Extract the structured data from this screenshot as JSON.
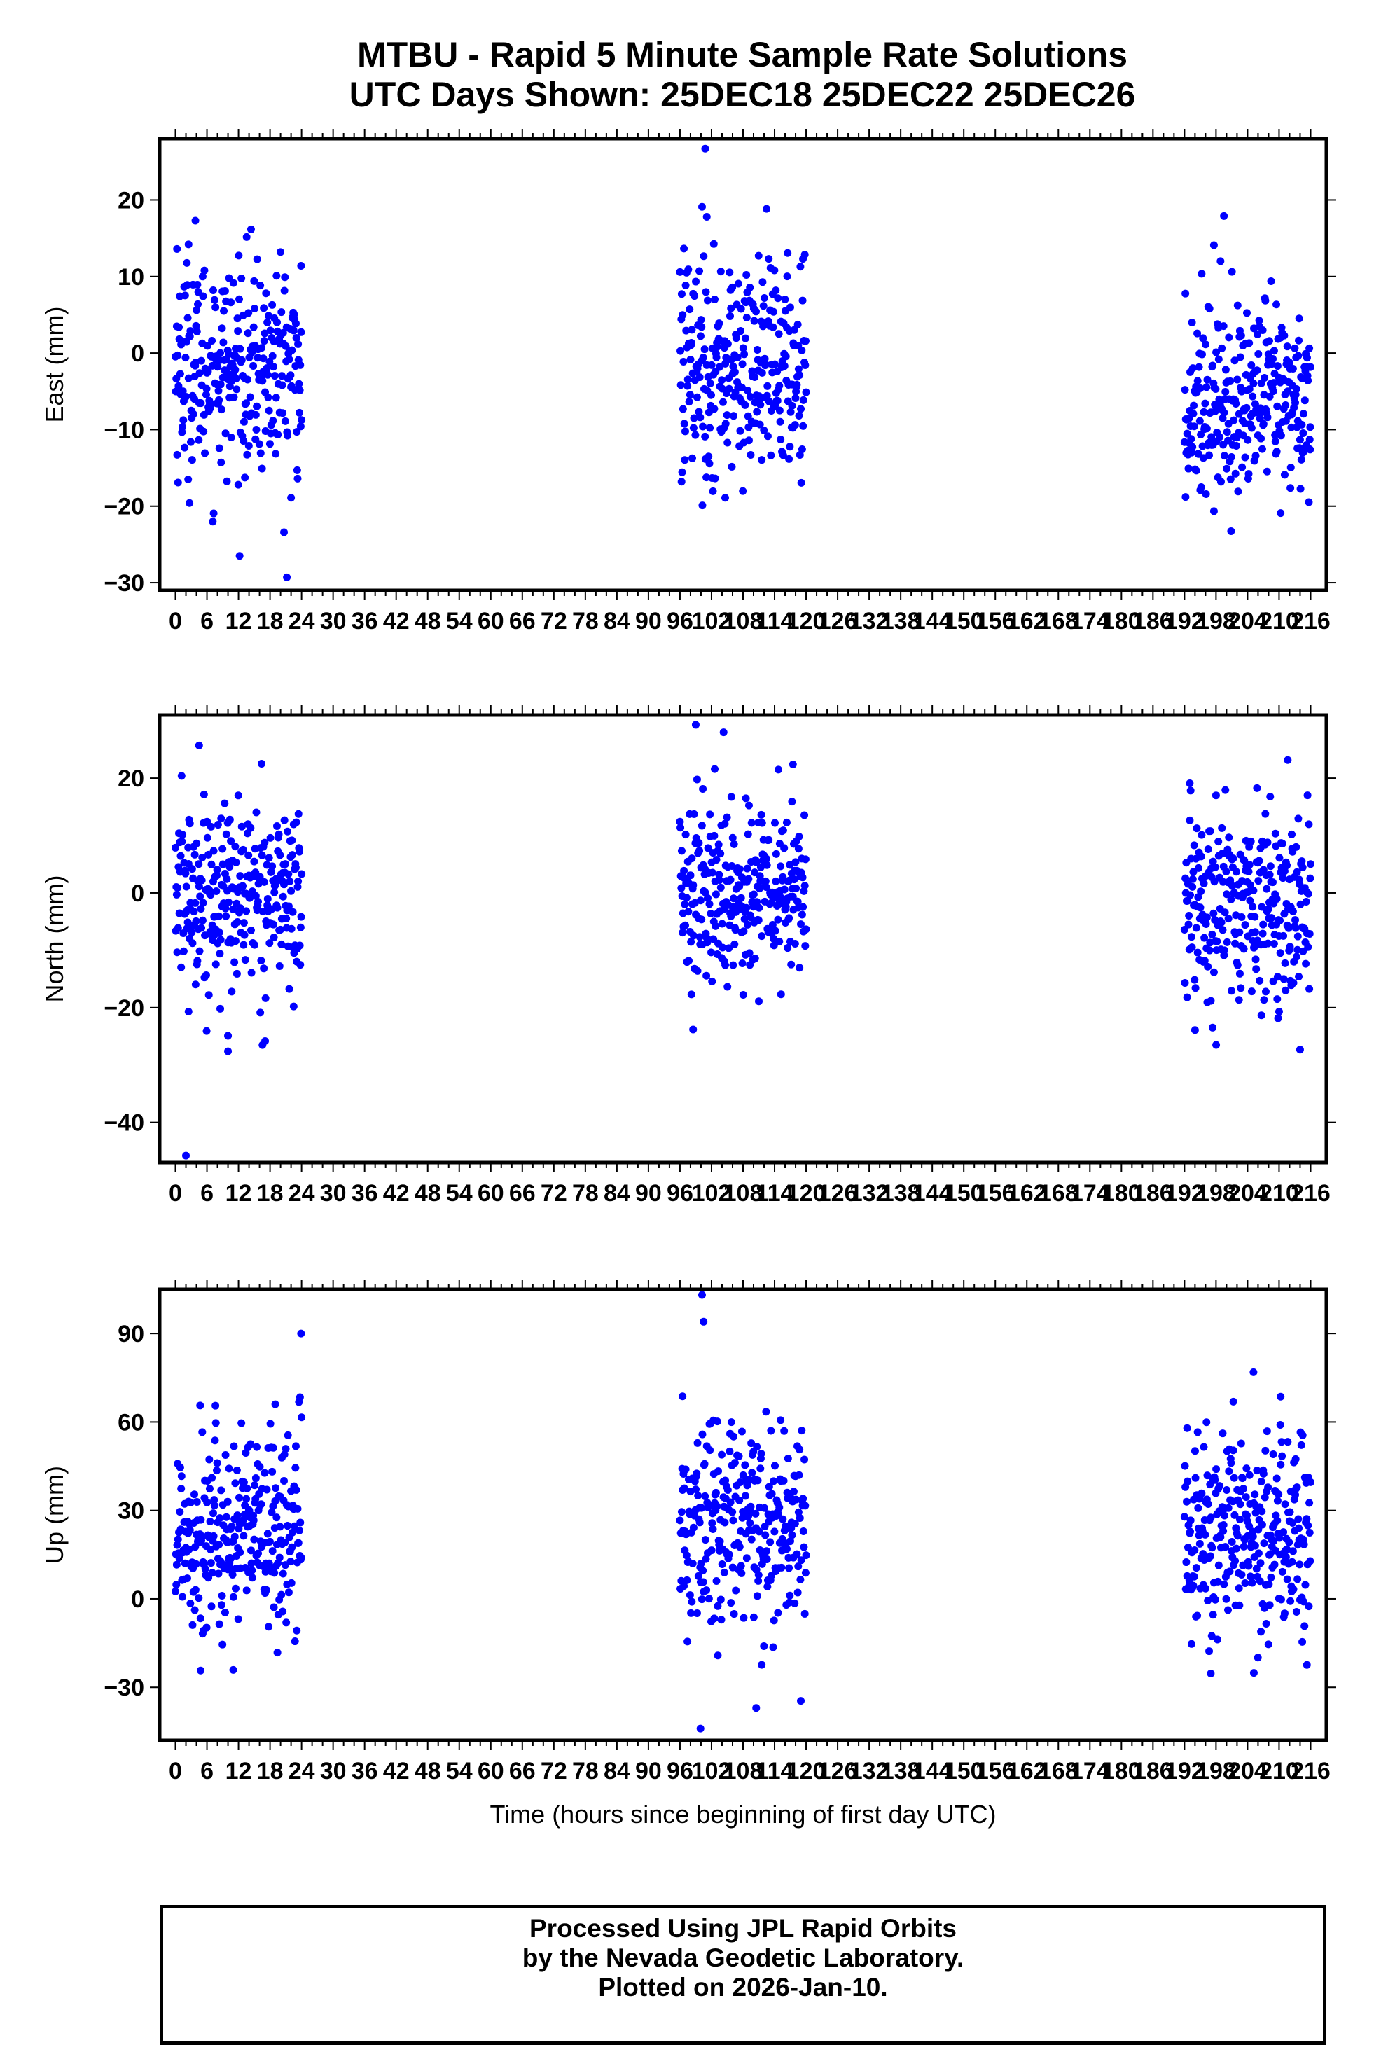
{
  "title": {
    "line1": "MTBU - Rapid 5 Minute Sample Rate Solutions",
    "line2": "UTC Days Shown:  25DEC18 25DEC22 25DEC26"
  },
  "footer": {
    "line1": "Processed Using JPL Rapid Orbits",
    "line2": "by the Nevada Geodetic Laboratory.",
    "line3": "Plotted on 2026-Jan-10."
  },
  "colors": {
    "points": "#0000ff",
    "axes": "#000000",
    "background": "#ffffff"
  },
  "chart_data": [
    {
      "type": "scatter",
      "panel": "east",
      "ylabel": "East (mm)",
      "xlabel": "",
      "xlim": [
        -3,
        219
      ],
      "ylim": [
        -31,
        28
      ],
      "yticks": [
        20,
        10,
        0,
        -10,
        -20,
        -30
      ],
      "xtick_labels": [
        "0",
        "6",
        "12",
        "18",
        "24",
        "30",
        "36",
        "42",
        "48",
        "54",
        "60",
        "66",
        "72",
        "78",
        "84",
        "90",
        "96",
        "102",
        "108",
        "114",
        "120",
        "126",
        "132",
        "138",
        "144",
        "150",
        "156",
        "162",
        "168",
        "174",
        "180",
        "186",
        "192",
        "198",
        "204",
        "210",
        "216"
      ],
      "grid": false,
      "series": [
        {
          "color": "#0000ff",
          "clusters": [
            {
              "x_range": [
                0,
                24
              ],
              "center": -2,
              "spread": 7,
              "extremes": [
                [
                  0.3,
                  13.6
                ],
                [
                  2.5,
                  14.2
                ],
                [
                  3.8,
                  17.3
                ],
                [
                  21.2,
                  -29.3
                ],
                [
                  23.9,
                  11.4
                ],
                [
                  22.0,
                  -18.9
                ]
              ]
            },
            {
              "x_range": [
                96,
                120
              ],
              "center": -2,
              "spread": 7,
              "extremes": [
                [
                  100.8,
                  26.7
                ],
                [
                  100.2,
                  19.1
                ],
                [
                  101.1,
                  17.8
                ],
                [
                  104.6,
                  -18.9
                ],
                [
                  96.3,
                  -16.8
                ],
                [
                  119.4,
                  12.3
                ]
              ]
            },
            {
              "x_range": [
                192,
                216
              ],
              "center": -6,
              "spread": 6,
              "extremes": [
                [
                  199.5,
                  17.9
                ],
                [
                  197.6,
                  14.1
                ],
                [
                  192.2,
                  -18.8
                ],
                [
                  210.3,
                  -20.9
                ],
                [
                  195.0,
                  -17.9
                ],
                [
                  215.9,
                  -12.6
                ]
              ]
            }
          ]
        }
      ]
    },
    {
      "type": "scatter",
      "panel": "north",
      "ylabel": "North (mm)",
      "xlabel": "",
      "xlim": [
        -3,
        219
      ],
      "ylim": [
        -47,
        31
      ],
      "yticks": [
        20,
        0,
        -20,
        -40
      ],
      "xtick_labels": [
        "0",
        "6",
        "12",
        "18",
        "24",
        "30",
        "36",
        "42",
        "48",
        "54",
        "60",
        "66",
        "72",
        "78",
        "84",
        "90",
        "96",
        "102",
        "108",
        "114",
        "120",
        "126",
        "132",
        "138",
        "144",
        "150",
        "156",
        "162",
        "168",
        "174",
        "180",
        "186",
        "192",
        "198",
        "204",
        "210",
        "216"
      ],
      "grid": false,
      "series": [
        {
          "color": "#0000ff",
          "clusters": [
            {
              "x_range": [
                0,
                24
              ],
              "center": 0,
              "spread": 8,
              "extremes": [
                [
                  2.0,
                  -45.8
                ],
                [
                  4.5,
                  25.7
                ],
                [
                  10.0,
                  -27.6
                ],
                [
                  10.0,
                  -24.9
                ],
                [
                  2.5,
                  -20.7
                ],
                [
                  22.5,
                  -19.8
                ]
              ]
            },
            {
              "x_range": [
                96,
                120
              ],
              "center": 0,
              "spread": 8,
              "extremes": [
                [
                  99.0,
                  29.3
                ],
                [
                  104.3,
                  28.0
                ],
                [
                  98.5,
                  -23.8
                ],
                [
                  117.5,
                  22.4
                ],
                [
                  111.0,
                  -18.9
                ]
              ]
            },
            {
              "x_range": [
                192,
                216
              ],
              "center": -2,
              "spread": 8,
              "extremes": [
                [
                  193.0,
                  19.1
                ],
                [
                  194.0,
                  -23.9
                ],
                [
                  210.0,
                  -20.7
                ],
                [
                  198.0,
                  17.0
                ]
              ]
            }
          ]
        }
      ]
    },
    {
      "type": "scatter",
      "panel": "up",
      "ylabel": "Up (mm)",
      "xlabel": "Time (hours since beginning of first day UTC)",
      "xlim": [
        -3,
        219
      ],
      "ylim": [
        -48,
        105
      ],
      "yticks": [
        90,
        60,
        30,
        0,
        -30
      ],
      "xtick_labels": [
        "0",
        "6",
        "12",
        "18",
        "24",
        "30",
        "36",
        "42",
        "48",
        "54",
        "60",
        "66",
        "72",
        "78",
        "84",
        "90",
        "96",
        "102",
        "108",
        "114",
        "120",
        "126",
        "132",
        "138",
        "144",
        "150",
        "156",
        "162",
        "168",
        "174",
        "180",
        "186",
        "192",
        "198",
        "204",
        "210",
        "216"
      ],
      "grid": false,
      "series": [
        {
          "color": "#0000ff",
          "clusters": [
            {
              "x_range": [
                0,
                24
              ],
              "center": 22,
              "spread": 17,
              "extremes": [
                [
                  23.9,
                  90.0
                ],
                [
                  4.7,
                  65.6
                ],
                [
                  23.7,
                  68.4
                ],
                [
                  4.8,
                  -24.3
                ],
                [
                  11.0,
                  -24.1
                ],
                [
                  19.0,
                  66.0
                ]
              ]
            },
            {
              "x_range": [
                96,
                120
              ],
              "center": 25,
              "spread": 18,
              "extremes": [
                [
                  100.2,
                  103.1
                ],
                [
                  100.5,
                  94.0
                ],
                [
                  99.9,
                  -44.0
                ],
                [
                  110.5,
                  -37.0
                ],
                [
                  96.5,
                  68.7
                ],
                [
                  103.2,
                  -19.2
                ]
              ]
            },
            {
              "x_range": [
                192,
                216
              ],
              "center": 22,
              "spread": 17,
              "extremes": [
                [
                  201.3,
                  66.9
                ],
                [
                  210.3,
                  68.6
                ],
                [
                  197.0,
                  -25.3
                ],
                [
                  205.2,
                  -25.1
                ],
                [
                  192.5,
                  57.9
                ],
                [
                  215.3,
                  -22.4
                ]
              ]
            }
          ]
        }
      ]
    }
  ]
}
